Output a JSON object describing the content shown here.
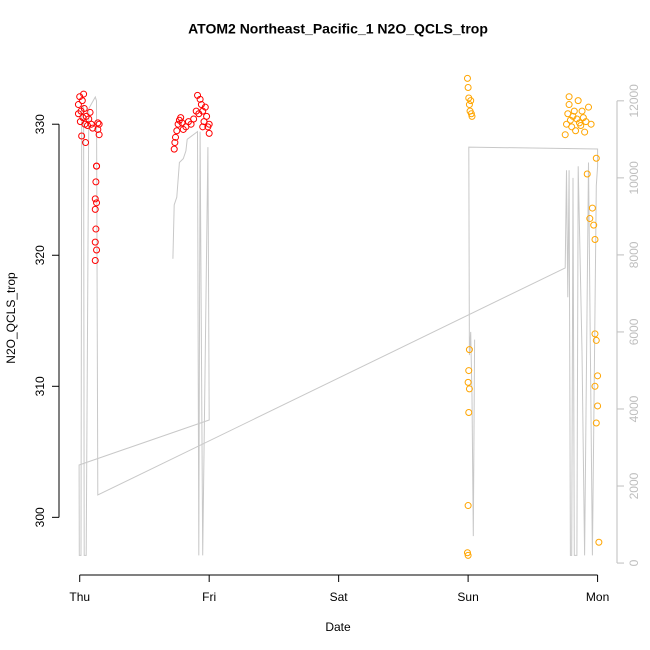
{
  "chart_data": {
    "type": "scatter",
    "title": "ATOM2 Northeast_Pacific_1 N2O_QCLS_trop",
    "x_label": "Date",
    "y_label": "N2O_QCLS_trop",
    "xlim": [
      -0.16,
      4.15
    ],
    "xticks": [
      {
        "value": 0,
        "label": "Thu"
      },
      {
        "value": 1,
        "label": "Fri"
      },
      {
        "value": 2,
        "label": "Sat"
      },
      {
        "value": 3,
        "label": "Sun"
      },
      {
        "value": 4,
        "label": "Mon"
      }
    ],
    "ylim": [
      295.6,
      334.9
    ],
    "yticks": [
      300,
      310,
      320,
      330
    ],
    "y2lim": [
      -310,
      13060
    ],
    "y2ticks": [
      0,
      2000,
      4000,
      6000,
      8000,
      10000,
      12000
    ],
    "y2_color": "#bebebe",
    "series": [
      {
        "color": "#ff0000",
        "x": [
          -0.01,
          -0.01,
          0.0,
          0.005,
          0.01,
          0.015,
          0.02,
          0.025,
          0.03,
          0.035,
          0.04,
          0.045,
          0.05,
          0.06,
          0.13,
          0.125,
          0.12,
          0.12,
          0.125,
          0.12,
          0.12,
          0.13,
          0.14,
          0.14,
          0.13,
          0.13,
          0.15,
          0.15,
          0.07,
          0.08,
          0.09,
          0.1
        ],
        "values": [
          331.5,
          330.8,
          332.1,
          330.2,
          331.0,
          329.1,
          331.8,
          330.5,
          332.3,
          331.2,
          330.0,
          328.6,
          330.6,
          329.9,
          326.8,
          325.6,
          324.3,
          323.5,
          322.0,
          321.0,
          319.6,
          326.8,
          330.1,
          329.6,
          324.0,
          320.4,
          330.0,
          329.2,
          330.4,
          330.9,
          330.0,
          329.7
        ]
      },
      {
        "color": "#ff0000",
        "x": [
          0.73,
          0.735,
          0.74,
          0.75,
          0.76,
          0.77,
          0.78,
          0.79,
          0.8,
          0.82,
          0.84,
          0.86,
          0.88,
          0.9,
          0.91,
          0.92,
          0.93,
          0.94,
          0.95,
          0.96,
          0.97,
          0.98,
          0.99,
          1.0,
          1.0,
          0.95
        ],
        "values": [
          328.1,
          328.6,
          329.0,
          329.5,
          330.0,
          330.3,
          330.5,
          330.1,
          329.6,
          329.8,
          330.2,
          330.0,
          330.4,
          331.0,
          332.2,
          330.8,
          331.9,
          331.5,
          331.0,
          330.2,
          331.3,
          330.6,
          329.8,
          329.3,
          330.0,
          329.8
        ]
      },
      {
        "color": "#ffa500",
        "x": [
          2.995,
          3.0,
          3.005,
          3.01,
          3.015,
          3.02,
          3.025,
          3.03,
          3.01,
          3.005,
          3.0,
          3.01,
          3.005,
          3.0,
          2.995,
          3.0,
          3.75,
          3.76,
          3.77,
          3.78,
          3.78,
          3.79,
          3.8,
          3.81,
          3.82,
          3.83,
          3.84,
          3.85,
          3.86,
          3.87,
          3.88,
          3.89,
          3.9,
          3.91,
          3.92,
          3.93,
          3.94,
          3.95,
          3.96,
          3.97,
          3.98,
          3.99,
          3.98,
          3.99,
          4.0,
          4.0,
          3.99,
          4.01,
          3.98
        ],
        "values": [
          333.5,
          332.8,
          332.0,
          331.5,
          331.0,
          331.8,
          330.8,
          330.6,
          312.8,
          311.2,
          310.3,
          309.8,
          308.0,
          300.9,
          297.3,
          297.1,
          329.2,
          330.0,
          330.8,
          331.5,
          332.1,
          330.3,
          329.8,
          330.6,
          331.0,
          329.5,
          330.4,
          331.8,
          330.1,
          329.9,
          331.0,
          330.5,
          329.4,
          330.2,
          326.2,
          331.3,
          322.8,
          330.0,
          323.6,
          322.3,
          321.2,
          327.4,
          314.0,
          313.5,
          310.8,
          308.5,
          307.2,
          298.1,
          310.0
        ]
      },
      {
        "type": "line",
        "axis": "y2",
        "color": "#c8c8c8",
        "x": [
          0.72,
          0.73,
          0.75,
          0.77,
          0.8,
          0.82,
          0.83,
          0.91,
          0.92,
          0.93,
          0.95,
          0.99,
          1.0,
          -0.005,
          -0.003,
          0.01,
          0.015,
          0.03,
          0.035,
          0.05,
          0.07,
          0.12,
          0.13,
          0.14,
          3.75,
          3.76,
          3.77,
          3.78,
          3.79,
          3.8,
          3.81,
          3.82,
          3.84,
          3.85,
          3.88,
          3.9,
          3.93,
          3.96,
          3.99,
          4.0,
          4.0,
          3.005,
          3.01,
          3.02,
          3.03,
          3.04,
          3.05
        ],
        "values": [
          7900,
          9300,
          9500,
          10400,
          10500,
          10700,
          11000,
          11200,
          200,
          11200,
          200,
          10800,
          3714,
          2545,
          200,
          200,
          11800,
          11900,
          200,
          200,
          11800,
          12100,
          12000,
          1766,
          7662,
          10200,
          6900,
          10200,
          200,
          200,
          10000,
          200,
          200,
          10300,
          5500,
          200,
          10400,
          200,
          9800,
          10300,
          10750,
          10800,
          5400,
          6000,
          4300,
          700,
          5800
        ]
      }
    ]
  }
}
